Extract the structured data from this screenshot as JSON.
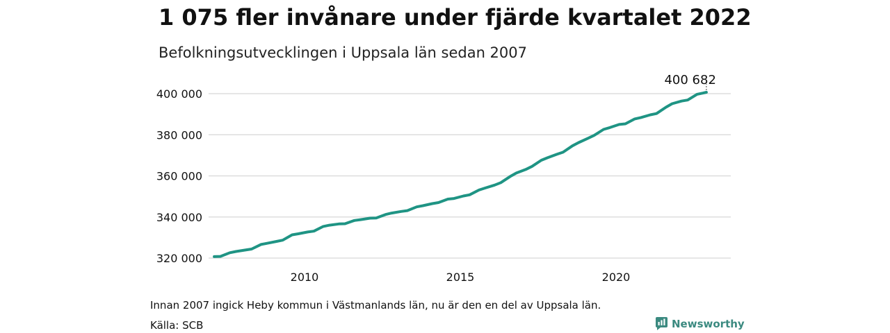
{
  "header": {
    "title": "1 075 fler invånare under fjärde kvartalet 2022",
    "subtitle": "Befolkningsutvecklingen i Uppsala län sedan 2007"
  },
  "footer": {
    "note": "Innan 2007 ingick Heby kommun i Västmanlands län, nu är den en del av Uppsala län.",
    "source": "Källa: SCB",
    "brand": "Newsworthy",
    "brand_icon": "newsworthy-logo-icon"
  },
  "colors": {
    "line": "#1f9484",
    "grid": "#dddddd",
    "brand": "#3b8a80"
  },
  "chart_data": {
    "type": "line",
    "title": "1 075 fler invånare under fjärde kvartalet 2022",
    "subtitle": "Befolkningsutvecklingen i Uppsala län sedan 2007",
    "xlabel": "",
    "ylabel": "",
    "xlim": [
      2007.0,
      2023.5
    ],
    "ylim": [
      318000,
      402000
    ],
    "x_ticks": [
      2010,
      2015,
      2020
    ],
    "x_tick_labels": [
      "2010",
      "2015",
      "2020"
    ],
    "y_ticks": [
      320000,
      340000,
      360000,
      380000,
      400000
    ],
    "y_tick_labels": [
      "320 000",
      "340 000",
      "360 000",
      "380 000",
      "400 000"
    ],
    "grid": "horizontal",
    "annotation": {
      "text": "400 682",
      "x": 2022.9,
      "y": 400682
    },
    "series": [
      {
        "name": "",
        "x": [
          2007.1,
          2007.3,
          2007.6,
          2007.8,
          2008.1,
          2008.3,
          2008.6,
          2008.8,
          2009.1,
          2009.3,
          2009.6,
          2009.8,
          2010.1,
          2010.3,
          2010.6,
          2010.8,
          2011.1,
          2011.3,
          2011.6,
          2011.8,
          2012.1,
          2012.3,
          2012.6,
          2012.8,
          2013.1,
          2013.3,
          2013.6,
          2013.8,
          2014.1,
          2014.3,
          2014.6,
          2014.8,
          2015.1,
          2015.3,
          2015.6,
          2015.8,
          2016.1,
          2016.3,
          2016.6,
          2016.8,
          2017.1,
          2017.3,
          2017.6,
          2017.8,
          2018.1,
          2018.3,
          2018.6,
          2018.8,
          2019.1,
          2019.3,
          2019.6,
          2019.8,
          2020.1,
          2020.3,
          2020.6,
          2020.8,
          2021.1,
          2021.3,
          2021.6,
          2021.8,
          2022.1,
          2022.3,
          2022.6,
          2022.8,
          2022.9
        ],
        "y": [
          320700,
          320800,
          322600,
          323200,
          323900,
          324400,
          326600,
          327200,
          328100,
          328700,
          331300,
          331800,
          332700,
          333100,
          335400,
          336000,
          336600,
          336700,
          338300,
          338700,
          339400,
          339500,
          341200,
          341900,
          342700,
          343100,
          344900,
          345500,
          346500,
          347000,
          348700,
          349000,
          350200,
          350800,
          353100,
          354100,
          355500,
          356700,
          359700,
          361400,
          363100,
          364600,
          367600,
          368800,
          370500,
          371500,
          374600,
          376200,
          378300,
          379700,
          382600,
          383500,
          385000,
          385300,
          387700,
          388400,
          389700,
          390300,
          393400,
          395100,
          396400,
          396900,
          399700,
          400300,
          400682
        ]
      }
    ]
  }
}
